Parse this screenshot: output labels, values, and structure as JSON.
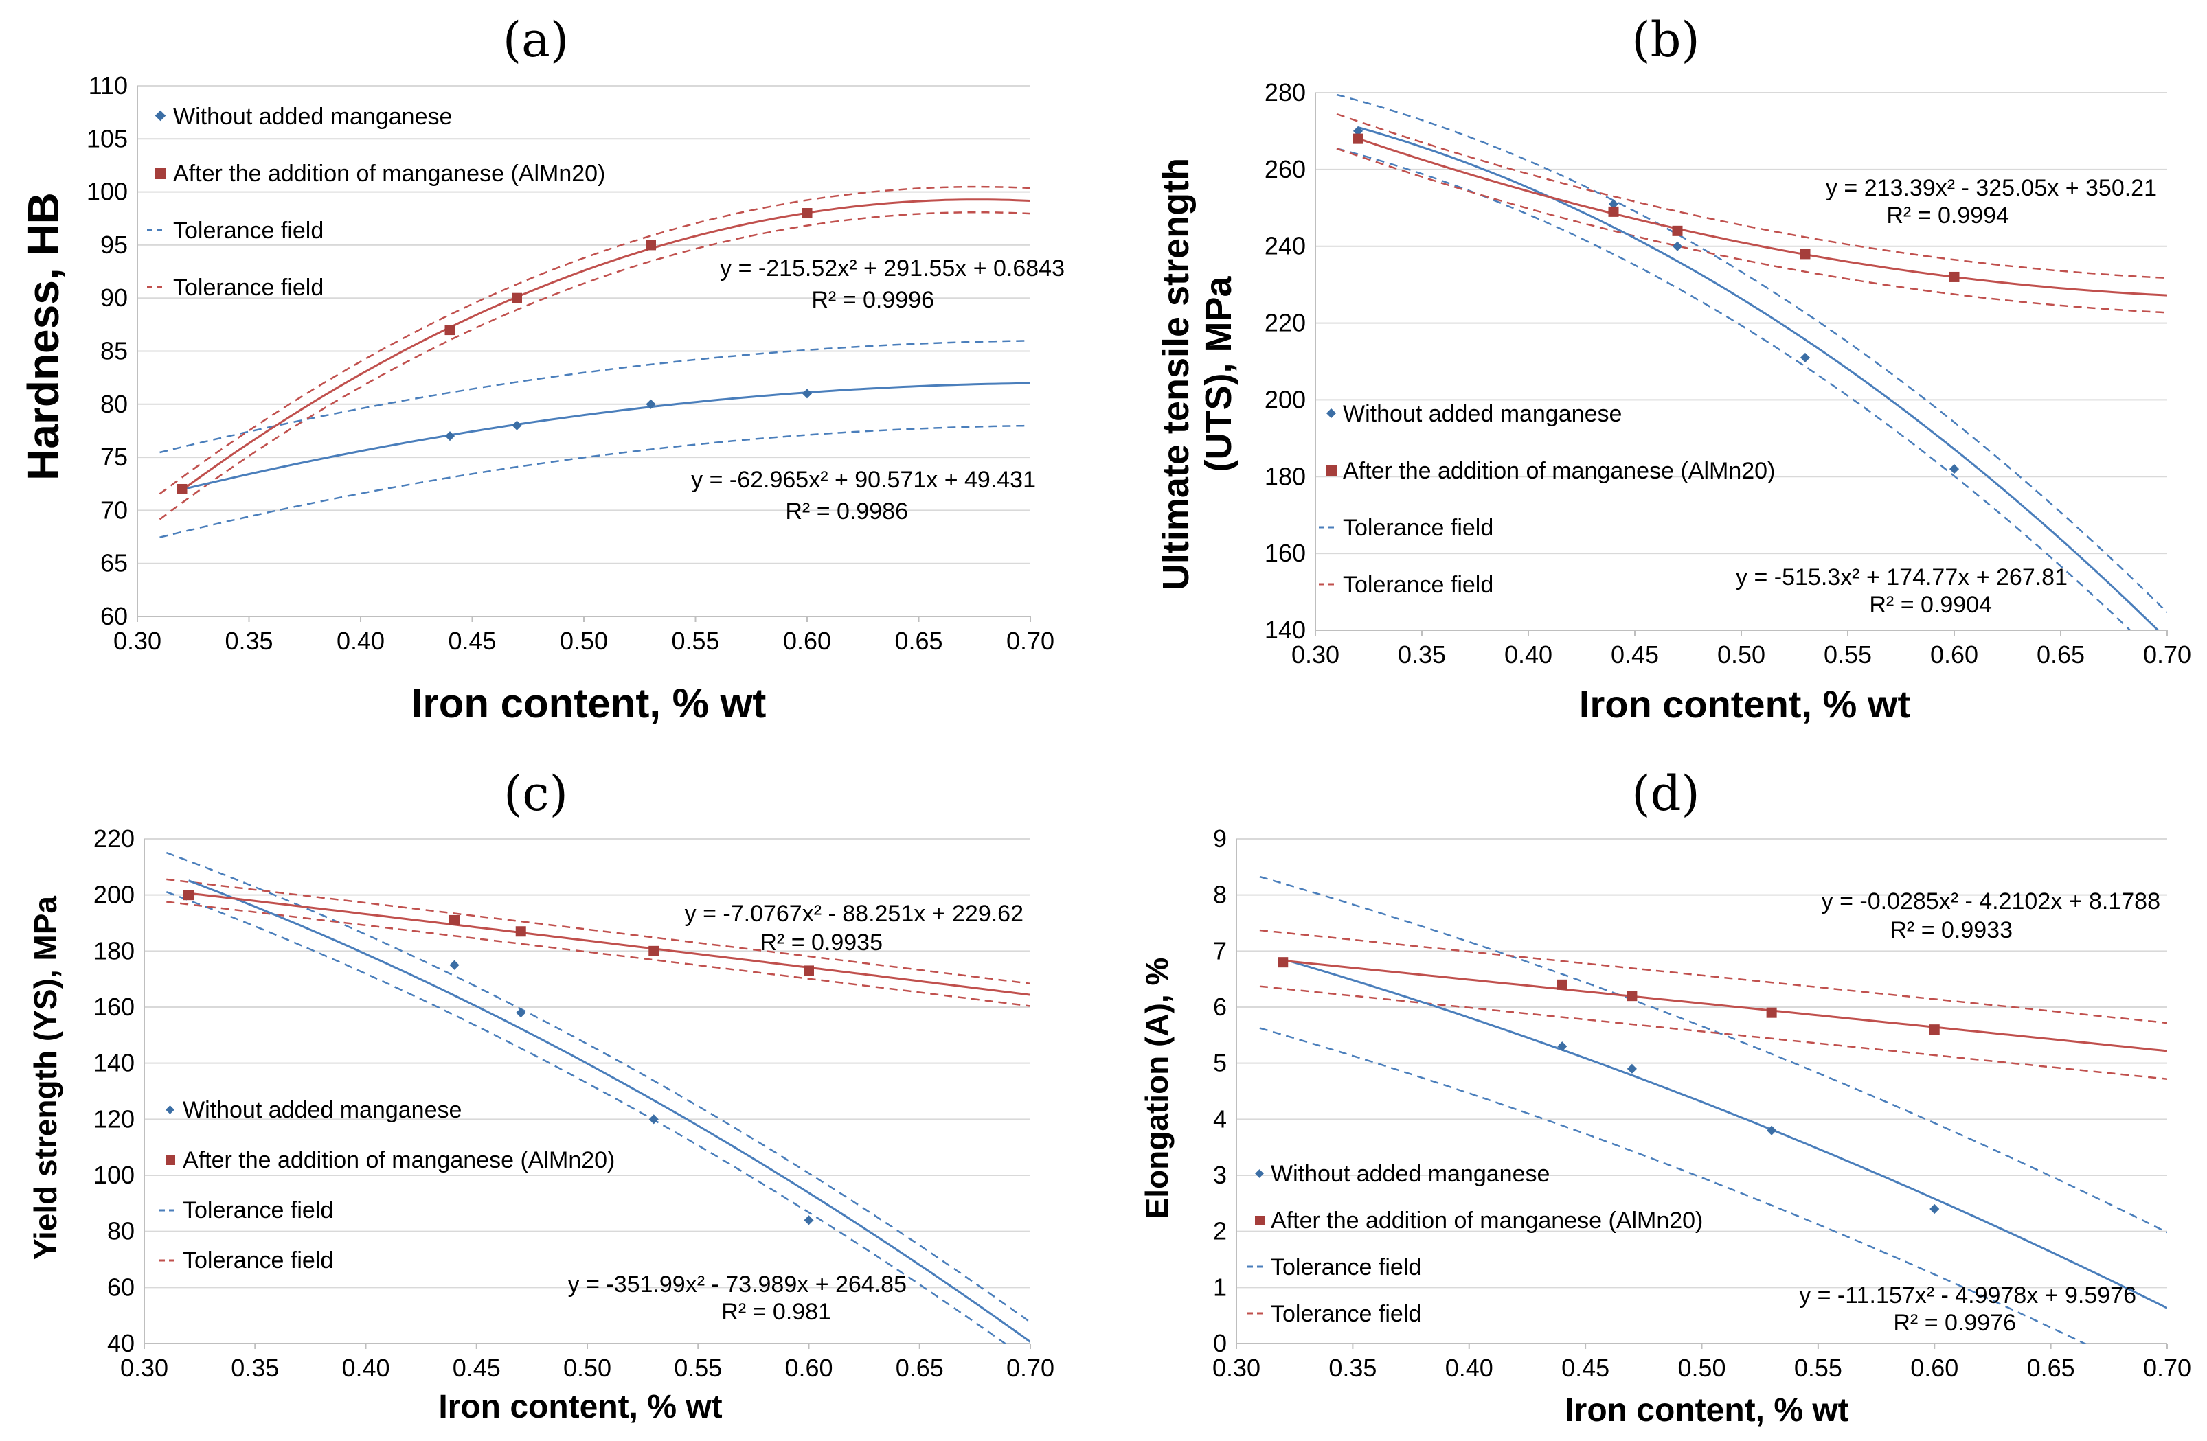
{
  "colors": {
    "blue": "#4a7ebb",
    "red": "#c0504d",
    "blue_marker": "#3b6ea5",
    "red_marker": "#a53e3b"
  },
  "chart_data": [
    {
      "type": "scatter",
      "panel_label": "(a)",
      "xlabel": "Iron content, % wt",
      "ylabel": "Hardness, HB",
      "xlim": [
        0.3,
        0.7
      ],
      "ylim": [
        60,
        110
      ],
      "x_ticks": [
        "0.30",
        "0.35",
        "0.40",
        "0.45",
        "0.50",
        "0.55",
        "0.60",
        "0.65",
        "0.70"
      ],
      "y_ticks": [
        "60",
        "65",
        "70",
        "75",
        "80",
        "85",
        "90",
        "95",
        "100",
        "105",
        "110"
      ],
      "legend": [
        "Without added manganese",
        "After the addition of manganese (AlMn20)",
        "Tolerance field",
        "Tolerance field"
      ],
      "series": [
        {
          "name": "Without added manganese",
          "x": [
            0.32,
            0.44,
            0.47,
            0.53,
            0.6
          ],
          "y": [
            72,
            77,
            78,
            80,
            81
          ],
          "fit": {
            "a": -62.965,
            "b": 90.571,
            "c": 49.431
          },
          "band": 4.0,
          "equation": "y = -62.965x² + 90.571x + 49.431",
          "r2": "R² = 0.9986"
        },
        {
          "name": "After the addition of manganese (AlMn20)",
          "x": [
            0.32,
            0.44,
            0.47,
            0.53,
            0.6
          ],
          "y": [
            72,
            87,
            90,
            95,
            98
          ],
          "fit": {
            "a": -215.52,
            "b": 291.55,
            "c": 0.6843
          },
          "band": 1.2,
          "equation": "y = -215.52x² + 291.55x + 0.6843",
          "r2": "R² = 0.9996"
        }
      ]
    },
    {
      "type": "scatter",
      "panel_label": "(b)",
      "xlabel": "Iron content, % wt",
      "ylabel_line1": "Ultimate tensile strength",
      "ylabel_line2": "(UTS), MPa",
      "xlim": [
        0.3,
        0.7
      ],
      "ylim": [
        140,
        280
      ],
      "x_ticks": [
        "0.30",
        "0.35",
        "0.40",
        "0.45",
        "0.50",
        "0.55",
        "0.60",
        "0.65",
        "0.70"
      ],
      "y_ticks": [
        "140",
        "160",
        "180",
        "200",
        "220",
        "240",
        "260",
        "280"
      ],
      "legend": [
        "Without added manganese",
        "After the addition of manganese (AlMn20)",
        "Tolerance field",
        "Tolerance field"
      ],
      "series": [
        {
          "name": "Without added manganese",
          "x": [
            0.32,
            0.44,
            0.47,
            0.53,
            0.6
          ],
          "y": [
            270,
            251,
            240,
            211,
            182
          ],
          "fit": {
            "a": -515.3,
            "b": 174.77,
            "c": 267.81
          },
          "band": 7.0,
          "equation": "y = -515.3x² + 174.77x + 267.81",
          "r2": "R² = 0.9904"
        },
        {
          "name": "After the addition of manganese (AlMn20)",
          "x": [
            0.32,
            0.44,
            0.47,
            0.53,
            0.6
          ],
          "y": [
            268,
            249,
            244,
            238,
            232
          ],
          "fit": {
            "a": 213.39,
            "b": -325.05,
            "c": 350.21
          },
          "band": 4.5,
          "equation": "y = 213.39x² - 325.05x + 350.21",
          "r2": "R² = 0.9994"
        }
      ]
    },
    {
      "type": "scatter",
      "panel_label": "(c)",
      "xlabel": "Iron content, % wt",
      "ylabel": "Yield strength (YS), MPa",
      "xlim": [
        0.3,
        0.7
      ],
      "ylim": [
        40,
        220
      ],
      "x_ticks": [
        "0.30",
        "0.35",
        "0.40",
        "0.45",
        "0.50",
        "0.55",
        "0.60",
        "0.65",
        "0.70"
      ],
      "y_ticks": [
        "40",
        "60",
        "80",
        "100",
        "120",
        "140",
        "160",
        "180",
        "200",
        "220"
      ],
      "legend": [
        "Without added manganese",
        "After the addition of manganese (AlMn20)",
        "Tolerance field",
        "Tolerance field"
      ],
      "series": [
        {
          "name": "Without added manganese",
          "x": [
            0.32,
            0.44,
            0.47,
            0.53,
            0.6
          ],
          "y": [
            200,
            175,
            158,
            120,
            84
          ],
          "fit": {
            "a": -351.99,
            "b": -73.989,
            "c": 264.85
          },
          "band": 7.0,
          "equation": "y = -351.99x² - 73.989x + 264.85",
          "r2": "R² = 0.981"
        },
        {
          "name": "After the addition of manganese (AlMn20)",
          "x": [
            0.32,
            0.44,
            0.47,
            0.53,
            0.6
          ],
          "y": [
            200,
            191,
            187,
            180,
            173
          ],
          "fit": {
            "a": -7.0767,
            "b": -88.251,
            "c": 229.62
          },
          "band": 4.0,
          "equation": "y = -7.0767x² - 88.251x + 229.62",
          "r2": "R² = 0.9935"
        }
      ]
    },
    {
      "type": "scatter",
      "panel_label": "(d)",
      "xlabel": "Iron content, % wt",
      "ylabel": "Elongation (A), %",
      "xlim": [
        0.3,
        0.7
      ],
      "ylim": [
        0,
        9
      ],
      "x_ticks": [
        "0.30",
        "0.35",
        "0.40",
        "0.45",
        "0.50",
        "0.55",
        "0.60",
        "0.65",
        "0.70"
      ],
      "y_ticks": [
        "0",
        "1",
        "2",
        "3",
        "4",
        "5",
        "6",
        "7",
        "8",
        "9"
      ],
      "legend": [
        "Without added manganese",
        "After the addition of manganese (AlMn20)",
        "Tolerance field",
        "Tolerance field"
      ],
      "series": [
        {
          "name": "Without added manganese",
          "x": [
            0.32,
            0.44,
            0.47,
            0.53,
            0.6
          ],
          "y": [
            6.8,
            5.3,
            4.9,
            3.8,
            2.4
          ],
          "fit": {
            "a": -11.157,
            "b": -4.9978,
            "c": 9.5976
          },
          "band": 1.35,
          "equation": "y = -11.157x² - 4.9978x + 9.5976",
          "r2": "R² = 0.9976"
        },
        {
          "name": "After the addition of manganese (AlMn20)",
          "x": [
            0.32,
            0.44,
            0.47,
            0.53,
            0.6
          ],
          "y": [
            6.8,
            6.4,
            6.2,
            5.9,
            5.6
          ],
          "fit": {
            "a": -0.0285,
            "b": -4.2102,
            "c": 8.1788
          },
          "band": 0.5,
          "equation": "y = -0.0285x² - 4.2102x + 8.1788",
          "r2": "R² = 0.9933"
        }
      ]
    }
  ]
}
